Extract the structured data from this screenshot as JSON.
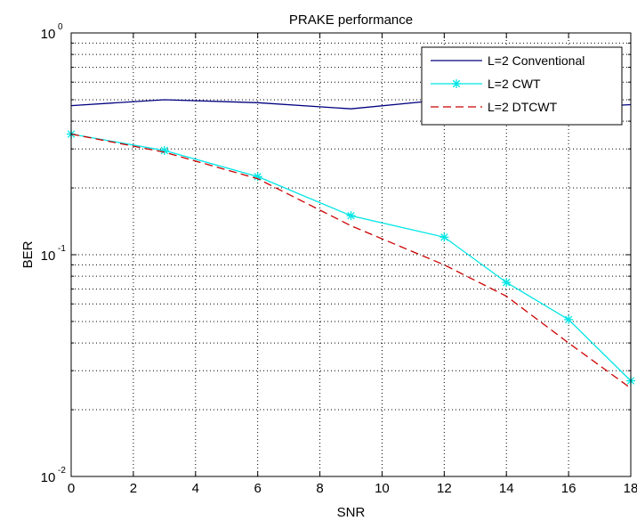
{
  "chart_data": {
    "type": "line",
    "title": "PRAKE performance",
    "xlabel": "SNR",
    "ylabel": "BER",
    "xlim": [
      0,
      18
    ],
    "ylim": [
      0.01,
      1
    ],
    "y_scale": "log",
    "grid": true,
    "grid_style": "dotted",
    "legend_position": "top-right",
    "x_ticks": [
      "0",
      "2",
      "4",
      "6",
      "8",
      "10",
      "12",
      "14",
      "16",
      "18"
    ],
    "y_ticks": [
      {
        "value": 1,
        "base": "10",
        "exponent": "0"
      },
      {
        "value": 0.1,
        "base": "10",
        "exponent": "-1"
      },
      {
        "value": 0.01,
        "base": "10",
        "exponent": "-2"
      }
    ],
    "series": [
      {
        "name": "L=2 Conventional",
        "color": "#000080",
        "line_style": "solid",
        "marker": "none",
        "x": [
          0,
          3,
          6,
          9,
          12,
          14,
          16,
          18
        ],
        "y": [
          0.47,
          0.5,
          0.485,
          0.455,
          0.5,
          0.48,
          0.46,
          0.475
        ]
      },
      {
        "name": "L=2 CWT",
        "color": "#00e5e5",
        "line_style": "solid",
        "marker": "star",
        "x": [
          0,
          3,
          6,
          9,
          12,
          14,
          16,
          18
        ],
        "y": [
          0.35,
          0.295,
          0.225,
          0.15,
          0.12,
          0.075,
          0.051,
          0.027
        ]
      },
      {
        "name": "L=2 DTCWT",
        "color": "#cc0000",
        "line_style": "dashed",
        "marker": "none",
        "x": [
          0,
          3,
          6,
          9,
          12,
          14,
          16,
          18
        ],
        "y": [
          0.35,
          0.29,
          0.22,
          0.135,
          0.09,
          0.065,
          0.04,
          0.025
        ]
      }
    ]
  }
}
